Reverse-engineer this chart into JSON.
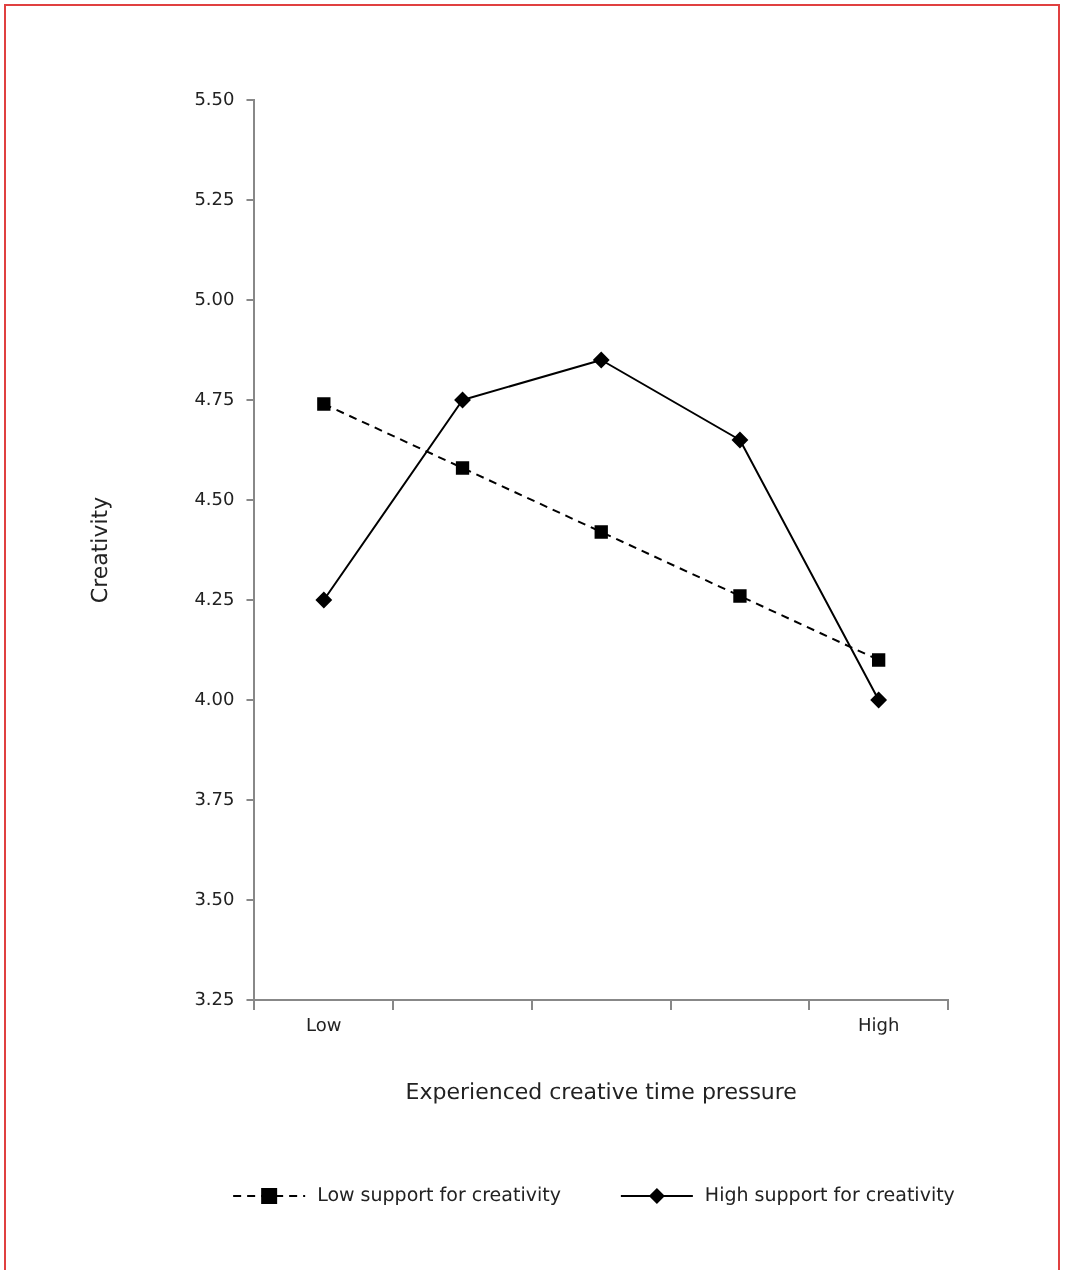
{
  "chart_data": {
    "type": "line",
    "xlabel": "Experienced creative time pressure",
    "ylabel": "Creativity",
    "categories": [
      "Low",
      null,
      null,
      null,
      "High"
    ],
    "series": [
      {
        "name": "Low support for creativity",
        "color": "#000000",
        "values": [
          4.74,
          4.58,
          4.42,
          4.26,
          4.1
        ],
        "marker": "square",
        "line_style": "dashed"
      },
      {
        "name": "High support for creativity",
        "color": "#000000",
        "values": [
          4.25,
          4.75,
          4.85,
          4.65,
          4.0
        ],
        "marker": "diamond",
        "line_style": "solid"
      }
    ],
    "ylim": [
      3.25,
      5.5
    ],
    "yticks": [
      {
        "value": 3.25,
        "label": "3.25"
      },
      {
        "value": 3.5,
        "label": "3.50"
      },
      {
        "value": 3.75,
        "label": "3.75"
      },
      {
        "value": 4,
        "label": "4.00"
      },
      {
        "value": 4.25,
        "label": "4.25"
      },
      {
        "value": 4.5,
        "label": "4.50"
      },
      {
        "value": 4.75,
        "label": "4.75"
      },
      {
        "value": 5,
        "label": "5.00"
      },
      {
        "value": 5.25,
        "label": "5.25"
      },
      {
        "value": 5.5,
        "label": "5.50"
      }
    ],
    "grid": false,
    "legend": "bottom"
  }
}
